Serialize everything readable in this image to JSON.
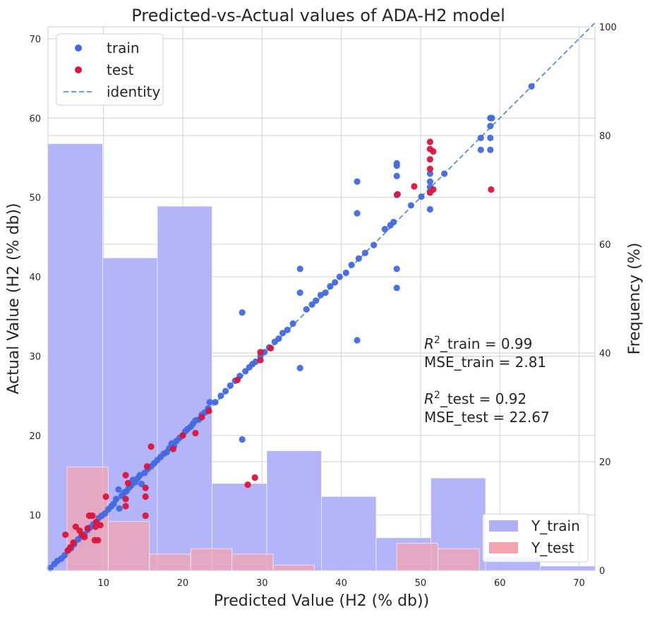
{
  "chart_data": {
    "type": "scatter",
    "title": "Predicted-vs-Actual values of ADA-H2 model",
    "xlabel": "Predicted Value (H2 (% db))",
    "ylabel": "Actual Value (H2 (% db))",
    "y2label": "Frequency (%)",
    "xlim": [
      3,
      72
    ],
    "ylim": [
      3,
      71.5
    ],
    "y2lim": [
      0,
      100
    ],
    "xticks": [
      10,
      20,
      30,
      40,
      50,
      60,
      70
    ],
    "yticks": [
      10,
      20,
      30,
      40,
      50,
      60,
      70
    ],
    "y2ticks": [
      0,
      20,
      40,
      60,
      80,
      100
    ],
    "grid": true,
    "legend_position": "top-left",
    "legend2_position": "bottom-right",
    "legend": [
      {
        "label": "train",
        "kind": "marker",
        "color": "#4169e1"
      },
      {
        "label": "test",
        "kind": "marker",
        "color": "#dc143c"
      },
      {
        "label": "identity",
        "kind": "dashed-line",
        "color": "#5b8fd6"
      }
    ],
    "legend2": [
      {
        "label": "Y_train",
        "color": "#b0b0f8"
      },
      {
        "label": "Y_test",
        "color": "#f4a4b0"
      }
    ],
    "annotation": {
      "lines": [
        {
          "prefix": "R",
          "sup": "2",
          "text": "_train = 0.99"
        },
        {
          "prefix": "",
          "sup": "",
          "text": "MSE_train = 2.81"
        },
        {
          "prefix": "",
          "sup": "",
          "text": ""
        },
        {
          "prefix": "R",
          "sup": "2",
          "text": "_test = 0.92"
        },
        {
          "prefix": "",
          "sup": "",
          "text": "MSE_test = 22.67"
        }
      ]
    },
    "identity_line": {
      "from": [
        3,
        3
      ],
      "to": [
        72,
        72
      ]
    },
    "histograms": [
      {
        "name": "Y_train",
        "color": "#b0b0f8",
        "bins": [
          {
            "x0": 3,
            "x1": 9.9,
            "freq": 78.5
          },
          {
            "x0": 9.9,
            "x1": 16.8,
            "freq": 57.5
          },
          {
            "x0": 16.8,
            "x1": 23.7,
            "freq": 67
          },
          {
            "x0": 23.7,
            "x1": 30.6,
            "freq": 16
          },
          {
            "x0": 30.6,
            "x1": 37.5,
            "freq": 22
          },
          {
            "x0": 37.5,
            "x1": 44.4,
            "freq": 13.6
          },
          {
            "x0": 44.4,
            "x1": 51.3,
            "freq": 6
          },
          {
            "x0": 51.3,
            "x1": 58.2,
            "freq": 17
          },
          {
            "x0": 58.2,
            "x1": 65.1,
            "freq": 2.5
          },
          {
            "x0": 65.1,
            "x1": 72,
            "freq": 0.8
          }
        ]
      },
      {
        "name": "Y_test",
        "color": "#f4a4b0",
        "bins": [
          {
            "x0": 5.4,
            "x1": 10.6,
            "freq": 19
          },
          {
            "x0": 10.6,
            "x1": 15.8,
            "freq": 9
          },
          {
            "x0": 15.8,
            "x1": 21,
            "freq": 3
          },
          {
            "x0": 21,
            "x1": 26.2,
            "freq": 4
          },
          {
            "x0": 26.2,
            "x1": 31.4,
            "freq": 3
          },
          {
            "x0": 31.4,
            "x1": 36.6,
            "freq": 1
          },
          {
            "x0": 36.6,
            "x1": 41.8,
            "freq": 0
          },
          {
            "x0": 41.8,
            "x1": 47,
            "freq": 0
          },
          {
            "x0": 47,
            "x1": 52.2,
            "freq": 5
          },
          {
            "x0": 52.2,
            "x1": 57.4,
            "freq": 4
          }
        ]
      }
    ],
    "series": [
      {
        "name": "train",
        "color": "#4169e1",
        "points": [
          [
            3.3,
            3.3
          ],
          [
            3.8,
            3.8
          ],
          [
            4.2,
            4.2
          ],
          [
            4.7,
            4.5
          ],
          [
            5.1,
            4.9
          ],
          [
            5.5,
            5.5
          ],
          [
            5.9,
            5.8
          ],
          [
            6.3,
            6.3
          ],
          [
            6.8,
            6.9
          ],
          [
            7.2,
            7.3
          ],
          [
            7.6,
            7.5
          ],
          [
            8,
            8.1
          ],
          [
            8.3,
            8.4
          ],
          [
            8.7,
            8.8
          ],
          [
            9.1,
            9.1
          ],
          [
            9.4,
            9.6
          ],
          [
            9.8,
            9.9
          ],
          [
            10.2,
            10.2
          ],
          [
            10.6,
            10.7
          ],
          [
            11,
            11.1
          ],
          [
            11.3,
            11.4
          ],
          [
            11.6,
            12
          ],
          [
            11.9,
            13.2
          ],
          [
            12,
            10.8
          ],
          [
            12.3,
            12.4
          ],
          [
            12.6,
            12.8
          ],
          [
            12.9,
            13
          ],
          [
            13.2,
            13.4
          ],
          [
            13.5,
            13.7
          ],
          [
            13.7,
            14.4
          ],
          [
            14,
            14.1
          ],
          [
            14.3,
            14.6
          ],
          [
            14.6,
            15
          ],
          [
            14.8,
            13.9
          ],
          [
            15.2,
            15.3
          ],
          [
            15.6,
            15.8
          ],
          [
            16,
            16.1
          ],
          [
            16.4,
            16.5
          ],
          [
            16.8,
            16.9
          ],
          [
            17.2,
            17.3
          ],
          [
            17.6,
            17.7
          ],
          [
            18,
            17.9
          ],
          [
            18.3,
            18.4
          ],
          [
            18.6,
            19
          ],
          [
            18.9,
            18.7
          ],
          [
            19.2,
            19.3
          ],
          [
            19.6,
            19.7
          ],
          [
            20,
            20
          ],
          [
            20.3,
            20.5
          ],
          [
            20.6,
            20.8
          ],
          [
            21,
            21.1
          ],
          [
            21.3,
            21.5
          ],
          [
            21.6,
            21.9
          ],
          [
            22,
            22
          ],
          [
            22.4,
            22.6
          ],
          [
            22.8,
            22.9
          ],
          [
            23.2,
            23.4
          ],
          [
            23.4,
            24.2
          ],
          [
            24.1,
            24.2
          ],
          [
            24.8,
            25
          ],
          [
            25.4,
            25.6
          ],
          [
            26,
            26.3
          ],
          [
            26.6,
            26.9
          ],
          [
            27.2,
            27.5
          ],
          [
            27.5,
            19.5
          ],
          [
            27.5,
            35.5
          ],
          [
            27.9,
            28.1
          ],
          [
            28.4,
            28.6
          ],
          [
            28.8,
            29
          ],
          [
            29.2,
            29.3
          ],
          [
            29.8,
            30
          ],
          [
            30.3,
            30.5
          ],
          [
            30.9,
            31.1
          ],
          [
            31.6,
            31.8
          ],
          [
            32.1,
            32.2
          ],
          [
            32.6,
            32.9
          ],
          [
            33.2,
            33.3
          ],
          [
            33.9,
            34.1
          ],
          [
            34.8,
            41
          ],
          [
            34.8,
            38
          ],
          [
            34.8,
            28.5
          ],
          [
            35.6,
            35.9
          ],
          [
            36.3,
            36.5
          ],
          [
            36.8,
            37
          ],
          [
            37.4,
            37.7
          ],
          [
            38,
            38
          ],
          [
            38.6,
            38.8
          ],
          [
            39.2,
            39.3
          ],
          [
            39.8,
            40
          ],
          [
            40.6,
            40.5
          ],
          [
            41.3,
            41.5
          ],
          [
            42.2,
            42.3
          ],
          [
            42,
            48
          ],
          [
            42,
            52
          ],
          [
            42,
            32
          ],
          [
            43,
            43
          ],
          [
            44.1,
            44
          ],
          [
            45.5,
            46
          ],
          [
            46.2,
            46.5
          ],
          [
            46.6,
            46.9
          ],
          [
            47,
            54.3
          ],
          [
            47,
            54
          ],
          [
            47,
            52.7
          ],
          [
            47,
            41
          ],
          [
            47,
            38.6
          ],
          [
            47,
            50.3
          ],
          [
            48.8,
            49
          ],
          [
            50.1,
            50.1
          ],
          [
            51.2,
            52
          ],
          [
            51.2,
            53
          ],
          [
            51.2,
            48.5
          ],
          [
            51.2,
            51.3
          ],
          [
            53,
            53
          ],
          [
            57.6,
            57.5
          ],
          [
            57.6,
            56
          ],
          [
            58.8,
            60
          ],
          [
            58.8,
            59
          ],
          [
            58.8,
            57.5
          ],
          [
            58.8,
            56
          ],
          [
            59,
            60
          ],
          [
            64,
            64
          ]
        ]
      },
      {
        "name": "test",
        "color": "#dc143c",
        "points": [
          [
            5.2,
            7.5
          ],
          [
            5.5,
            5.5
          ],
          [
            5.8,
            5.9
          ],
          [
            6.2,
            6.5
          ],
          [
            6.5,
            8.5
          ],
          [
            7,
            8
          ],
          [
            7.3,
            7.5
          ],
          [
            7.6,
            7.2
          ],
          [
            8,
            8.3
          ],
          [
            8.2,
            9.9
          ],
          [
            8.6,
            9.9
          ],
          [
            8.9,
            6.8
          ],
          [
            9,
            8.5
          ],
          [
            9.1,
            9.1
          ],
          [
            9.3,
            6.8
          ],
          [
            9.6,
            8.7
          ],
          [
            10.3,
            12.3
          ],
          [
            12.8,
            15
          ],
          [
            12.8,
            11.1
          ],
          [
            12.8,
            12
          ],
          [
            13.1,
            14
          ],
          [
            15.3,
            13.4
          ],
          [
            15.3,
            12.3
          ],
          [
            15.3,
            9.9
          ],
          [
            15.5,
            16.1
          ],
          [
            16,
            18.6
          ],
          [
            18.8,
            18.3
          ],
          [
            20,
            20
          ],
          [
            21.6,
            20.3
          ],
          [
            22.4,
            22.3
          ],
          [
            23.3,
            23.1
          ],
          [
            26.9,
            27
          ],
          [
            28.2,
            13.8
          ],
          [
            29.1,
            14.7
          ],
          [
            29.8,
            30.5
          ],
          [
            29.8,
            29.5
          ],
          [
            31.1,
            31
          ],
          [
            47.1,
            50.4
          ],
          [
            49.2,
            51.4
          ],
          [
            51.2,
            54.8
          ],
          [
            51.2,
            56.1
          ],
          [
            51.2,
            53.6
          ],
          [
            51.2,
            50.6
          ],
          [
            51.2,
            57
          ],
          [
            51.6,
            55.8
          ],
          [
            51.6,
            51
          ],
          [
            58.9,
            51
          ]
        ]
      }
    ]
  }
}
